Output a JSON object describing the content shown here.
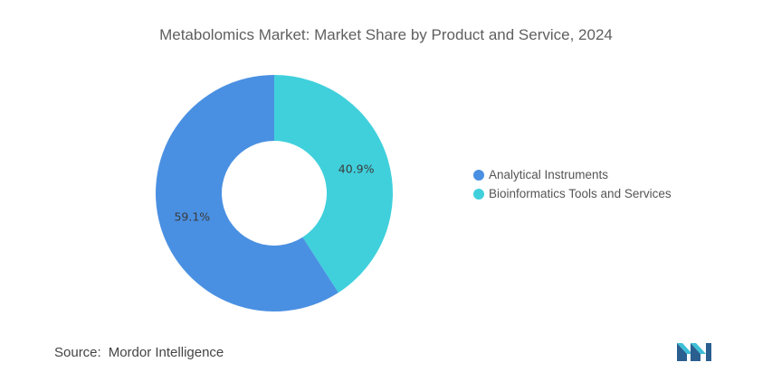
{
  "chart_data": {
    "type": "pie",
    "donut": true,
    "title": "Metabolomics Market: Market Share by Product and Service, 2024",
    "categories": [
      "Analytical Instruments",
      "Bioinformatics Tools and Services"
    ],
    "values": [
      59.1,
      40.9
    ],
    "labels": [
      "59.1%",
      "40.9%"
    ],
    "colors": [
      "#4a90e2",
      "#40d0dc"
    ],
    "legend_position": "right"
  },
  "source": {
    "label": "Source:",
    "name": "Mordor Intelligence"
  },
  "logo": {
    "icon": "mordor-intelligence-logo-icon",
    "colors": [
      "#2a5f8f",
      "#3dbfd6"
    ]
  }
}
